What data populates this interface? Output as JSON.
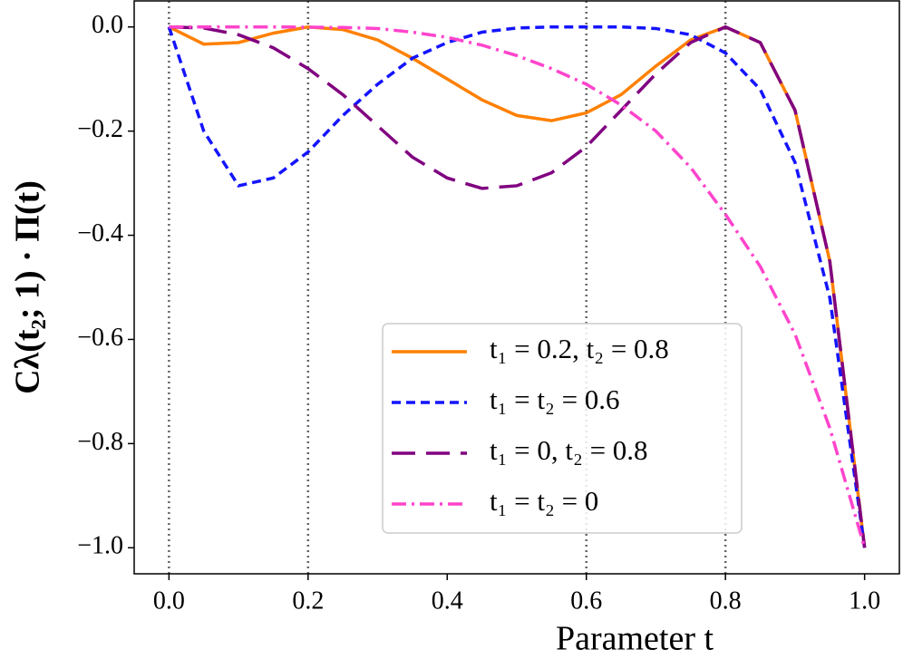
{
  "chart_data": {
    "type": "line",
    "xlabel": "Parameter t",
    "ylabel": "Cλ(t₂; 1) · Π(t)",
    "x": [
      0,
      0.05,
      0.1,
      0.15,
      0.2,
      0.25,
      0.3,
      0.35,
      0.4,
      0.45,
      0.5,
      0.55,
      0.6,
      0.65,
      0.7,
      0.75,
      0.8,
      0.85,
      0.9,
      0.95,
      1.0
    ],
    "series": [
      {
        "name": "t₁ = 0.2, t₂ = 0.8",
        "color": "#ff8000",
        "linestyle": "solid",
        "values": [
          0,
          -0.033,
          -0.03,
          -0.012,
          0,
          -0.005,
          -0.025,
          -0.06,
          -0.1,
          -0.14,
          -0.17,
          -0.18,
          -0.165,
          -0.13,
          -0.075,
          -0.025,
          0,
          -0.03,
          -0.16,
          -0.45,
          -1.0
        ]
      },
      {
        "name": "t₁ = t₂ = 0.6",
        "color": "#1414ff",
        "linestyle": "dashed",
        "values": [
          0,
          -0.2,
          -0.305,
          -0.29,
          -0.24,
          -0.17,
          -0.11,
          -0.06,
          -0.03,
          -0.01,
          -0.002,
          0,
          0,
          0,
          -0.003,
          -0.015,
          -0.05,
          -0.12,
          -0.26,
          -0.52,
          -1.0
        ]
      },
      {
        "name": "t₁ = 0, t₂ = 0.8",
        "color": "#800080",
        "linestyle": "long-dashed",
        "values": [
          0,
          -0.002,
          -0.015,
          -0.04,
          -0.08,
          -0.13,
          -0.19,
          -0.25,
          -0.29,
          -0.31,
          -0.305,
          -0.28,
          -0.23,
          -0.16,
          -0.09,
          -0.03,
          0,
          -0.03,
          -0.16,
          -0.45,
          -1.0
        ]
      },
      {
        "name": "t₁ = t₂ = 0",
        "color": "#ff44cc",
        "linestyle": "dash-dot",
        "values": [
          0,
          0,
          0,
          0,
          -0.0005,
          -0.001,
          -0.003,
          -0.01,
          -0.02,
          -0.035,
          -0.055,
          -0.08,
          -0.11,
          -0.15,
          -0.2,
          -0.27,
          -0.36,
          -0.46,
          -0.59,
          -0.77,
          -1.0
        ]
      }
    ],
    "vlines": [
      0,
      0.2,
      0.6,
      0.8
    ],
    "xlim": [
      -0.05,
      1.05
    ],
    "ylim": [
      -1.05,
      0.05
    ],
    "xticks": [
      {
        "value": 0,
        "label": "0.0"
      },
      0.2,
      0.4,
      0.6,
      0.8,
      {
        "value": 1,
        "label": "1.0"
      }
    ],
    "yticks": [
      {
        "value": 0,
        "label": "0.0"
      },
      {
        "value": -0.2,
        "label": "−0.2"
      },
      {
        "value": -0.4,
        "label": "−0.4"
      },
      {
        "value": -0.6,
        "label": "−0.6"
      },
      {
        "value": -0.8,
        "label": "−0.8"
      },
      {
        "value": -1.0,
        "label": "−1.0"
      }
    ],
    "grid": false,
    "legend": "lower center"
  }
}
